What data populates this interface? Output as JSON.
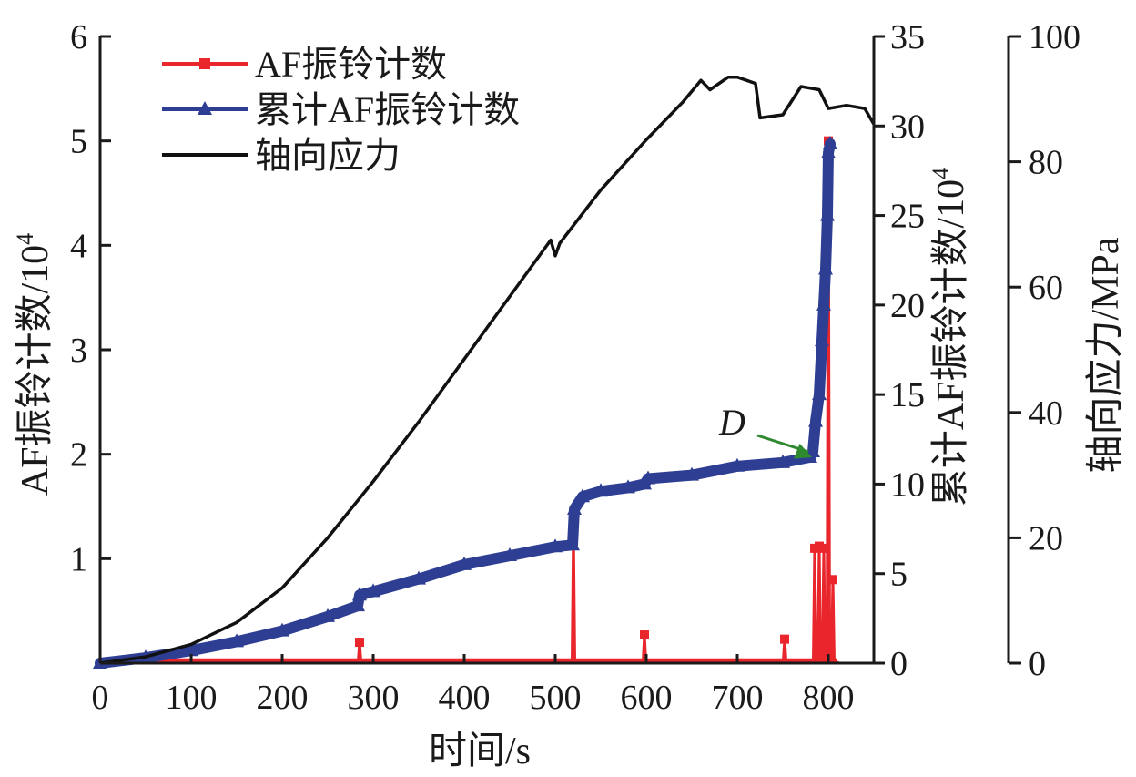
{
  "chart_data": {
    "type": "line",
    "x_axis": {
      "label": "时间/s",
      "range": [
        0,
        850
      ],
      "ticks": [
        "0",
        "100",
        "200",
        "300",
        "400",
        "500",
        "600",
        "700",
        "800"
      ]
    },
    "y_axes": {
      "left": {
        "label_main": "AF振铃计数/10",
        "label_exp": "4",
        "range": [
          0,
          6
        ],
        "ticks": [
          "",
          "1",
          "2",
          "3",
          "4",
          "5",
          "6"
        ]
      },
      "right1": {
        "label_main": "累计AF振铃计数/10",
        "label_exp": "4",
        "range": [
          0,
          35
        ],
        "ticks": [
          "0",
          "5",
          "10",
          "15",
          "20",
          "25",
          "30",
          "35"
        ]
      },
      "right2": {
        "label": "轴向应力/MPa",
        "range": [
          0,
          100
        ],
        "ticks": [
          "0",
          "20",
          "40",
          "60",
          "80",
          "100"
        ]
      }
    },
    "series": [
      {
        "name": "AF振铃计数",
        "axis": "left",
        "color": "#e8262b",
        "marker": "square",
        "baseline": 0.02,
        "spikes": [
          [
            285,
            0.2
          ],
          [
            520,
            1.3
          ],
          [
            598,
            0.27
          ],
          [
            752,
            0.23
          ],
          [
            785,
            1.1
          ],
          [
            790,
            1.12
          ],
          [
            795,
            1.1
          ],
          [
            800,
            5.0
          ],
          [
            805,
            0.8
          ]
        ]
      },
      {
        "name": "累计AF振铃计数",
        "axis": "right1",
        "color": "#2e3f93",
        "marker": "triangle",
        "x": [
          0,
          50,
          100,
          150,
          200,
          250,
          283,
          285,
          300,
          350,
          400,
          450,
          500,
          519,
          521,
          530,
          550,
          580,
          598,
          602,
          650,
          700,
          750,
          780,
          783,
          786,
          790,
          793,
          795,
          797,
          799,
          800,
          802
        ],
        "values": [
          0,
          0.3,
          0.7,
          1.2,
          1.8,
          2.6,
          3.2,
          3.8,
          4.0,
          4.7,
          5.5,
          6.0,
          6.5,
          6.6,
          8.6,
          9.3,
          9.6,
          9.8,
          10.0,
          10.3,
          10.5,
          11.0,
          11.2,
          11.5,
          11.8,
          13.5,
          15.0,
          18.0,
          20.0,
          22.0,
          25.0,
          28.5,
          29.0
        ]
      },
      {
        "name": "轴向应力",
        "axis": "right2",
        "color": "#111111",
        "marker": "none",
        "x": [
          0,
          50,
          100,
          150,
          200,
          250,
          300,
          350,
          400,
          450,
          495,
          500,
          505,
          550,
          600,
          640,
          660,
          670,
          690,
          700,
          720,
          725,
          750,
          770,
          790,
          800,
          820,
          840,
          850
        ],
        "values": [
          0,
          1,
          3,
          6.5,
          12,
          20,
          29,
          38.5,
          48.5,
          58.5,
          67.5,
          65,
          67,
          75.5,
          83.5,
          89.5,
          93,
          91.5,
          93.5,
          93.5,
          92.5,
          87,
          87.5,
          92,
          91.5,
          88.5,
          89,
          88.5,
          86
        ]
      }
    ],
    "legend": {
      "position": "top-left",
      "entries": [
        "AF振铃计数",
        "累计AF振铃计数",
        "轴向应力"
      ]
    },
    "annotation": {
      "label": "D",
      "target_x": 782,
      "target_axis": "right1",
      "target_value": 11.5,
      "color": "#2f8a2f"
    }
  }
}
